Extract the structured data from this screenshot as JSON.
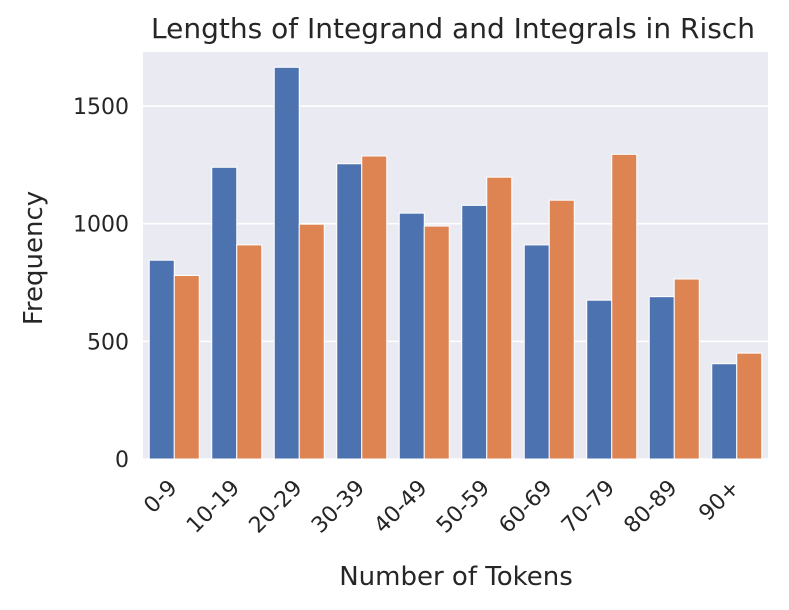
{
  "chart_data": {
    "type": "bar",
    "title": "Lengths of Integrand and Integrals in Risch",
    "xlabel": "Number of Tokens",
    "ylabel": "Frequency",
    "categories": [
      "0-9",
      "10-19",
      "20-29",
      "30-39",
      "40-49",
      "50-59",
      "60-69",
      "70-79",
      "80-89",
      "90+"
    ],
    "series": [
      {
        "values": [
          845,
          1240,
          1665,
          1255,
          1045,
          1078,
          910,
          675,
          690,
          405
        ],
        "color": "#4c72b0"
      },
      {
        "values": [
          780,
          910,
          998,
          1288,
          990,
          1198,
          1100,
          1295,
          765,
          450
        ],
        "color": "#dd8452"
      }
    ],
    "ylim": [
      0,
      1730
    ],
    "yticks": [
      0,
      500,
      1000,
      1500
    ],
    "grid": true,
    "background": "#eaeaf2",
    "gridColor": "#ffffff"
  }
}
